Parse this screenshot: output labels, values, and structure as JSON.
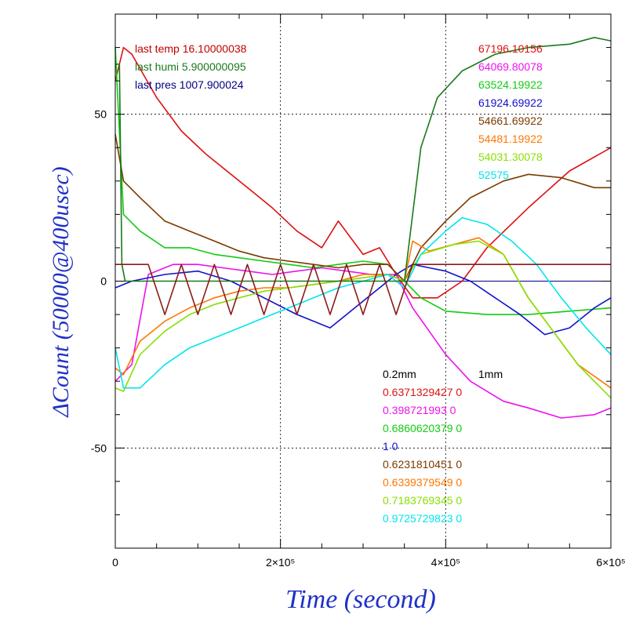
{
  "chart_data": {
    "type": "line",
    "xlabel": "Time (second)",
    "ylabel": "ΔCount (50000@400usec)",
    "xlim": [
      0,
      600000
    ],
    "ylim": [
      -80,
      80
    ],
    "x_ticks": [
      {
        "v": 0,
        "label": "0"
      },
      {
        "v": 200000,
        "label": "2×10⁵"
      },
      {
        "v": 400000,
        "label": "4×10⁵"
      },
      {
        "v": 600000,
        "label": "6×10⁵"
      }
    ],
    "y_ticks": [
      {
        "v": 50,
        "label": "50"
      },
      {
        "v": 0,
        "label": "0"
      },
      {
        "v": -50,
        "label": "-50"
      }
    ],
    "grid": true,
    "env_labels": [
      {
        "text": "last temp 16.10000038",
        "color": "#c00000"
      },
      {
        "text": "last humi 5.900000095",
        "color": "#1a7a1a"
      },
      {
        "text": "last pres 1007.900024",
        "color": "#000080"
      }
    ],
    "count_labels": [
      {
        "text": "67196.10156",
        "color": "#dd1111"
      },
      {
        "text": "64069.80078",
        "color": "#ee11ee"
      },
      {
        "text": "63524.19922",
        "color": "#11cc11"
      },
      {
        "text": "61924.69922",
        "color": "#1111cc"
      },
      {
        "text": "54661.69922",
        "color": "#7a3a00"
      },
      {
        "text": "54481.19922",
        "color": "#ff7700"
      },
      {
        "text": "54031.30078",
        "color": "#88e000"
      },
      {
        "text": "52575",
        "color": "#00e5ee"
      }
    ],
    "ratio_header": {
      "col1": "0.2mm",
      "col2": "1mm"
    },
    "ratio_labels": [
      {
        "text": "0.6371329427 0",
        "color": "#dd1111"
      },
      {
        "text": "0.398721993 0",
        "color": "#ee11ee"
      },
      {
        "text": "0.6860620379 0",
        "color": "#11cc11"
      },
      {
        "text": "1 0",
        "color": "#1111cc"
      },
      {
        "text": "0.6231810451 0",
        "color": "#7a3a00"
      },
      {
        "text": "0.6339379549 0",
        "color": "#ff7700"
      },
      {
        "text": "0.7183769345 0",
        "color": "#88e000"
      },
      {
        "text": "0.9725729823 0",
        "color": "#00e5ee"
      }
    ],
    "series": [
      {
        "color": "#dd1111",
        "x": [
          0,
          10000,
          20000,
          50000,
          80000,
          110000,
          140000,
          170000,
          190000,
          220000,
          250000,
          270000,
          300000,
          320000,
          340000,
          360000,
          390000,
          420000,
          450000,
          500000,
          550000,
          600000
        ],
        "y": [
          60,
          70,
          68,
          55,
          45,
          38,
          32,
          26,
          22,
          15,
          10,
          18,
          8,
          10,
          2,
          -5,
          -5,
          0,
          10,
          22,
          33,
          40
        ]
      },
      {
        "color": "#ee11ee",
        "x": [
          0,
          20000,
          40000,
          70000,
          100000,
          130000,
          160000,
          190000,
          220000,
          250000,
          280000,
          310000,
          340000,
          360000,
          380000,
          400000,
          430000,
          470000,
          500000,
          540000,
          580000,
          600000
        ],
        "y": [
          -30,
          -25,
          2,
          5,
          5,
          4,
          3,
          2,
          3,
          4,
          3,
          2,
          2,
          -8,
          -15,
          -22,
          -30,
          -36,
          -38,
          -41,
          -40,
          -38
        ]
      },
      {
        "color": "#11cc11",
        "x": [
          0,
          10000,
          30000,
          60000,
          90000,
          120000,
          150000,
          180000,
          210000,
          240000,
          270000,
          300000,
          330000,
          350000,
          370000,
          400000,
          450000,
          500000,
          550000,
          600000
        ],
        "y": [
          70,
          20,
          15,
          10,
          10,
          8,
          7,
          6,
          5,
          4,
          5,
          6,
          5,
          0,
          -5,
          -9,
          -10,
          -10,
          -9,
          -8
        ]
      },
      {
        "color": "#1111cc",
        "x": [
          0,
          20000,
          60000,
          100000,
          140000,
          180000,
          220000,
          260000,
          300000,
          340000,
          360000,
          380000,
          400000,
          430000,
          460000,
          490000,
          520000,
          550000,
          580000,
          600000
        ],
        "y": [
          -2,
          0,
          2,
          3,
          0,
          -5,
          -10,
          -14,
          -6,
          2,
          5,
          4,
          3,
          0,
          -5,
          -10,
          -16,
          -14,
          -8,
          -5
        ]
      },
      {
        "color": "#7a3a00",
        "x": [
          0,
          10000,
          30000,
          60000,
          90000,
          120000,
          150000,
          180000,
          210000,
          240000,
          270000,
          300000,
          330000,
          350000,
          370000,
          400000,
          430000,
          470000,
          500000,
          540000,
          580000,
          600000
        ],
        "y": [
          44,
          30,
          25,
          18,
          15,
          12,
          9,
          7,
          6,
          5,
          4,
          5,
          5,
          0,
          10,
          18,
          25,
          30,
          32,
          31,
          28,
          28
        ]
      },
      {
        "color": "#ff7700",
        "x": [
          0,
          10000,
          30000,
          60000,
          90000,
          120000,
          150000,
          180000,
          210000,
          240000,
          270000,
          300000,
          330000,
          350000,
          360000,
          380000,
          410000,
          440000,
          470000,
          500000,
          530000,
          560000,
          600000
        ],
        "y": [
          -26,
          -28,
          -18,
          -12,
          -8,
          -5,
          -3,
          -2,
          -2,
          -1,
          0,
          2,
          2,
          0,
          12,
          9,
          11,
          13,
          8,
          -5,
          -15,
          -25,
          -32
        ]
      },
      {
        "color": "#88e000",
        "x": [
          0,
          10000,
          30000,
          60000,
          90000,
          120000,
          150000,
          180000,
          210000,
          240000,
          270000,
          300000,
          330000,
          350000,
          370000,
          410000,
          440000,
          470000,
          500000,
          530000,
          560000,
          600000
        ],
        "y": [
          -32,
          -33,
          -22,
          -15,
          -10,
          -7,
          -5,
          -3,
          -2,
          -1,
          0,
          1,
          2,
          0,
          8,
          11,
          12,
          8,
          -5,
          -15,
          -25,
          -35
        ]
      },
      {
        "color": "#00e5ee",
        "x": [
          0,
          10000,
          30000,
          60000,
          90000,
          120000,
          150000,
          180000,
          210000,
          240000,
          270000,
          300000,
          330000,
          350000,
          370000,
          400000,
          420000,
          450000,
          480000,
          510000,
          540000,
          570000,
          600000
        ],
        "y": [
          -20,
          -32,
          -32,
          -25,
          -20,
          -17,
          -14,
          -11,
          -8,
          -5,
          -2,
          0,
          2,
          -2,
          8,
          15,
          19,
          17,
          12,
          5,
          -5,
          -14,
          -22
        ]
      },
      {
        "color": "#1a7a1a",
        "x": [
          0,
          5000,
          8000,
          12000,
          20000,
          60000,
          100000,
          150000,
          200000,
          250000,
          300000,
          330000,
          350000,
          360000,
          370000,
          390000,
          420000,
          460000,
          500000,
          550000,
          580000,
          600000
        ],
        "y": [
          65,
          65,
          5,
          0,
          0,
          0,
          0,
          0,
          0,
          0,
          0,
          0,
          0,
          20,
          40,
          55,
          63,
          68,
          70,
          71,
          73,
          72
        ]
      },
      {
        "color": "#8b1a1a",
        "x": [
          0,
          20000,
          40000,
          60000,
          80000,
          100000,
          120000,
          140000,
          160000,
          180000,
          200000,
          220000,
          240000,
          260000,
          280000,
          300000,
          320000,
          340000,
          360000,
          380000,
          400000,
          450000,
          500000,
          550000,
          600000
        ],
        "y": [
          5,
          5,
          5,
          -10,
          5,
          -10,
          5,
          -10,
          5,
          -10,
          5,
          -10,
          5,
          -10,
          5,
          -10,
          5,
          -10,
          5,
          5,
          5,
          5,
          5,
          5,
          5
        ]
      }
    ]
  }
}
